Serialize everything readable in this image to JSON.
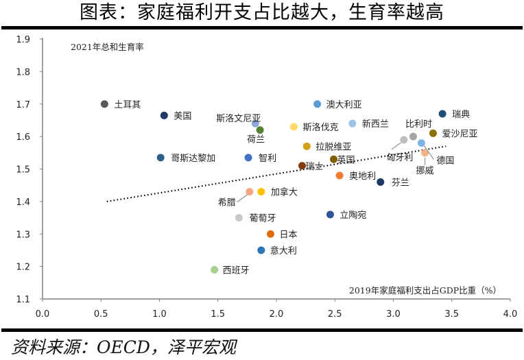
{
  "header": {
    "title": "图表：家庭福利开支占比越大，生育率越高"
  },
  "footer": {
    "source": "资料来源：OECD，泽平宏观"
  },
  "chart_data": {
    "type": "scatter",
    "title": "图表：家庭福利开支占比越大，生育率越高",
    "xlabel": "2019年家庭福利支出占GDP比重（%）",
    "ylabel": "2021年总和生育率",
    "xlim": [
      0.0,
      4.0
    ],
    "ylim": [
      1.1,
      1.9
    ],
    "xticks": [
      "0.0",
      "0.5",
      "1.0",
      "1.5",
      "2.0",
      "2.5",
      "3.0",
      "3.5",
      "4.0"
    ],
    "yticks": [
      "1.1",
      "1.2",
      "1.3",
      "1.4",
      "1.5",
      "1.6",
      "1.7",
      "1.8",
      "1.9"
    ],
    "grid": false,
    "points": [
      {
        "name": "土耳其",
        "x": 0.53,
        "y": 1.7,
        "color": "#595959"
      },
      {
        "name": "美国",
        "x": 1.04,
        "y": 1.665,
        "color": "#1f3864"
      },
      {
        "name": "斯洛文尼亚",
        "x": 1.82,
        "y": 1.64,
        "color": "#8eaadb"
      },
      {
        "name": "荷兰",
        "x": 1.86,
        "y": 1.62,
        "color": "#548235"
      },
      {
        "name": "澳大利亚",
        "x": 2.35,
        "y": 1.7,
        "color": "#5b9bd5"
      },
      {
        "name": "斯洛伐克",
        "x": 2.15,
        "y": 1.63,
        "color": "#ffd966"
      },
      {
        "name": "新西兰",
        "x": 2.65,
        "y": 1.64,
        "color": "#9dc3e6"
      },
      {
        "name": "瑞典",
        "x": 3.42,
        "y": 1.67,
        "color": "#1f4e79"
      },
      {
        "name": "比利时",
        "x": 3.17,
        "y": 1.6,
        "color": "#a5a5a5"
      },
      {
        "name": "匈牙利",
        "x": 3.09,
        "y": 1.59,
        "color": "#bfbfbf"
      },
      {
        "name": "爱沙尼亚",
        "x": 3.34,
        "y": 1.61,
        "color": "#8b6f00"
      },
      {
        "name": "德国",
        "x": 3.24,
        "y": 1.58,
        "color": "#7fb2e5"
      },
      {
        "name": "挪威",
        "x": 3.27,
        "y": 1.55,
        "color": "#f4b183"
      },
      {
        "name": "拉脱维亚",
        "x": 2.26,
        "y": 1.57,
        "color": "#d4a017"
      },
      {
        "name": "哥斯达黎加",
        "x": 1.01,
        "y": 1.535,
        "color": "#2e5f8a"
      },
      {
        "name": "智利",
        "x": 1.76,
        "y": 1.535,
        "color": "#4472c4"
      },
      {
        "name": "瑞士",
        "x": 2.22,
        "y": 1.51,
        "color": "#843c0c"
      },
      {
        "name": "英国",
        "x": 2.49,
        "y": 1.53,
        "color": "#7f6000"
      },
      {
        "name": "奥地利",
        "x": 2.54,
        "y": 1.48,
        "color": "#ed7d31"
      },
      {
        "name": "芬兰",
        "x": 2.89,
        "y": 1.46,
        "color": "#203864"
      },
      {
        "name": "希腊",
        "x": 1.77,
        "y": 1.43,
        "color": "#f4a582"
      },
      {
        "name": "加拿大",
        "x": 1.87,
        "y": 1.43,
        "color": "#ffc000"
      },
      {
        "name": "葡萄牙",
        "x": 1.68,
        "y": 1.35,
        "color": "#c9c9c9"
      },
      {
        "name": "立陶宛",
        "x": 2.46,
        "y": 1.36,
        "color": "#2f5597"
      },
      {
        "name": "日本",
        "x": 1.95,
        "y": 1.3,
        "color": "#e36c0a"
      },
      {
        "name": "意大利",
        "x": 1.87,
        "y": 1.25,
        "color": "#2e75b6"
      },
      {
        "name": "西班牙",
        "x": 1.47,
        "y": 1.19,
        "color": "#a9d18e"
      }
    ],
    "trendline": {
      "style": "dotted",
      "color": "#000000",
      "x": [
        0.55,
        3.45
      ],
      "y": [
        1.4,
        1.57
      ]
    }
  }
}
